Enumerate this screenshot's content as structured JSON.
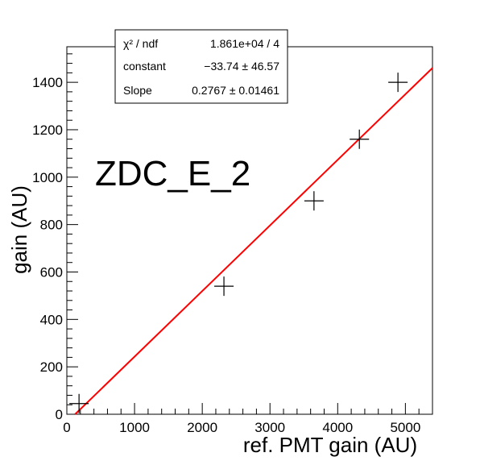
{
  "chart_data": {
    "type": "scatter",
    "title": "",
    "xlabel": "ref. PMT gain (AU)",
    "ylabel": "gain (AU)",
    "xlim": [
      0,
      5400
    ],
    "ylim": [
      0,
      1550
    ],
    "x_ticks": [
      0,
      1000,
      2000,
      3000,
      4000,
      5000
    ],
    "y_ticks": [
      0,
      200,
      400,
      600,
      800,
      1000,
      1200,
      1400
    ],
    "x_tick_labels": [
      "0",
      "1000",
      "2000",
      "3000",
      "4000",
      "5000"
    ],
    "y_tick_labels": [
      "0",
      "200",
      "400",
      "600",
      "800",
      "1000",
      "1200",
      "1400"
    ],
    "grid": false,
    "series": [
      {
        "marker": "cross",
        "color": "#000000",
        "points": [
          {
            "x": 180,
            "y": 45
          },
          {
            "x": 2320,
            "y": 540
          },
          {
            "x": 3650,
            "y": 900
          },
          {
            "x": 4320,
            "y": 1160
          },
          {
            "x": 4890,
            "y": 1400
          }
        ]
      }
    ],
    "fit": {
      "color": "#ff0000",
      "constant": -33.74,
      "slope": 0.2767
    },
    "annotation": "ZDC_E_2",
    "stats_box": {
      "rows": [
        {
          "label": "χ² / ndf",
          "value": "1.861e+04 / 4"
        },
        {
          "label": "constant",
          "value": "−33.74 ± 46.57"
        },
        {
          "label": "Slope",
          "value": "0.2767 ± 0.01461"
        }
      ]
    }
  }
}
